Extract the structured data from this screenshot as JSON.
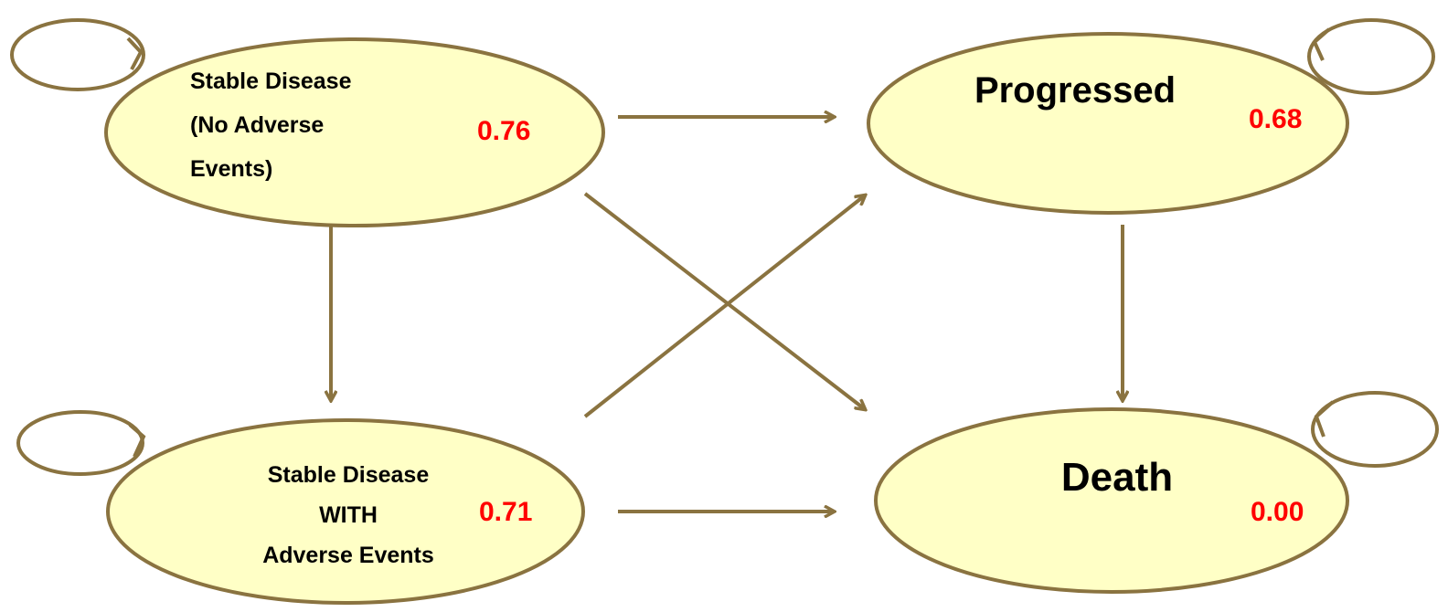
{
  "colors": {
    "node_fill": "#ffffc6",
    "node_stroke": "#8a7340",
    "edge": "#8a7340",
    "label": "#000000",
    "value": "#ff0000"
  },
  "nodes": {
    "stable": {
      "label_lines": [
        "Stable Disease",
        "(No Adverse",
        "Events)"
      ],
      "value": "0.76"
    },
    "stable_ae": {
      "label_lines": [
        "Stable Disease",
        "WITH",
        "Adverse Events"
      ],
      "value": "0.71"
    },
    "progressed": {
      "label_lines": [
        "Progressed"
      ],
      "value": "0.68"
    },
    "death": {
      "label_lines": [
        "Death"
      ],
      "value": "0.00"
    }
  },
  "edges": [
    {
      "from": "stable",
      "to": "progressed"
    },
    {
      "from": "stable",
      "to": "death"
    },
    {
      "from": "stable",
      "to": "stable_ae"
    },
    {
      "from": "stable_ae",
      "to": "progressed"
    },
    {
      "from": "stable_ae",
      "to": "death"
    },
    {
      "from": "progressed",
      "to": "death"
    }
  ],
  "self_loops": [
    "stable",
    "stable_ae",
    "progressed",
    "death"
  ]
}
